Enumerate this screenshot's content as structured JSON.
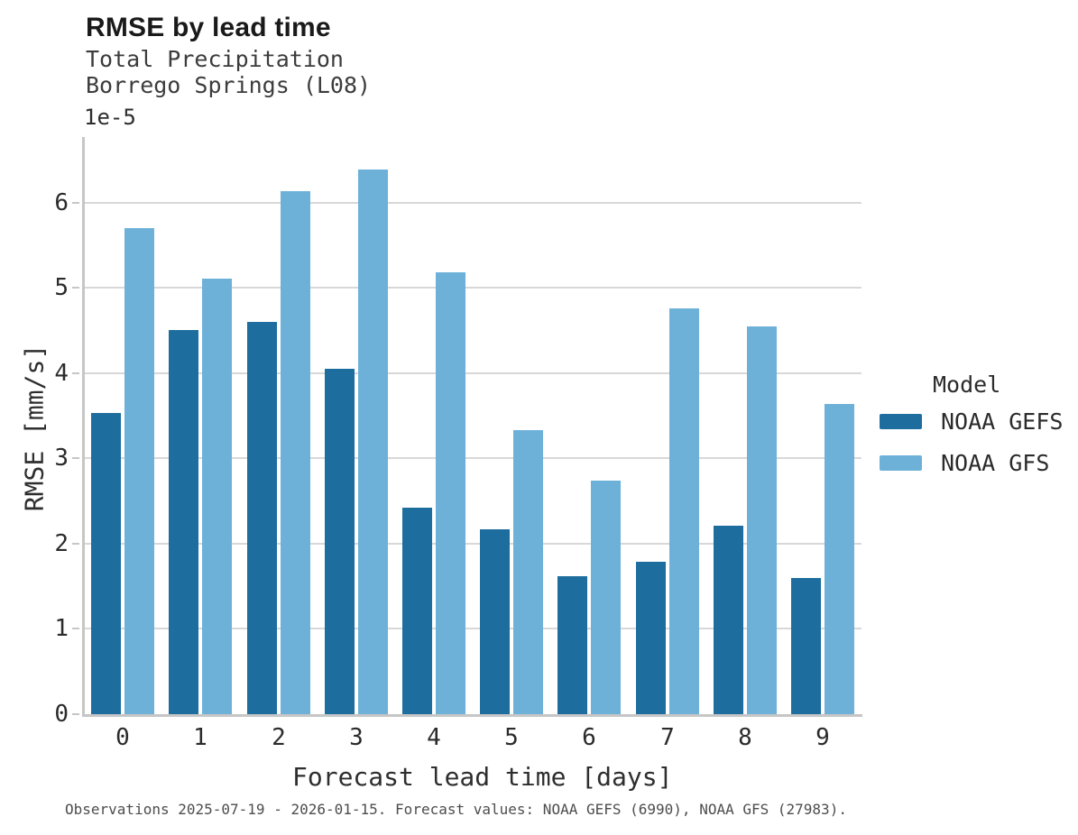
{
  "chart_data": {
    "type": "bar",
    "title": "RMSE by lead time",
    "subtitle_lines": [
      "Total Precipitation",
      "Borrego Springs (L08)"
    ],
    "y_offset_label": "1e-5",
    "xlabel": "Forecast lead time [days]",
    "ylabel": "RMSE [mm/s]",
    "legend_title": "Model",
    "legend_position": "right",
    "grid": "horizontal",
    "categories": [
      "0",
      "1",
      "2",
      "3",
      "4",
      "5",
      "6",
      "7",
      "8",
      "9"
    ],
    "series": [
      {
        "name": "NOAA GEFS",
        "color": "#1d6d9e",
        "values": [
          3.53,
          4.51,
          4.6,
          4.05,
          2.42,
          2.17,
          1.62,
          1.79,
          2.21,
          1.6
        ]
      },
      {
        "name": "NOAA GFS",
        "color": "#6db1d9",
        "values": [
          5.7,
          5.11,
          6.14,
          6.39,
          5.18,
          3.33,
          2.74,
          4.76,
          4.55,
          3.64
        ]
      }
    ],
    "values_unit_multiplier": "1e-5",
    "yticks": [
      0,
      1,
      2,
      3,
      4,
      5,
      6
    ],
    "ylim": [
      0,
      6.77
    ],
    "footnote": "Observations 2025-07-19 - 2026-01-15. Forecast values: NOAA GEFS (6990), NOAA GFS (27983)."
  }
}
